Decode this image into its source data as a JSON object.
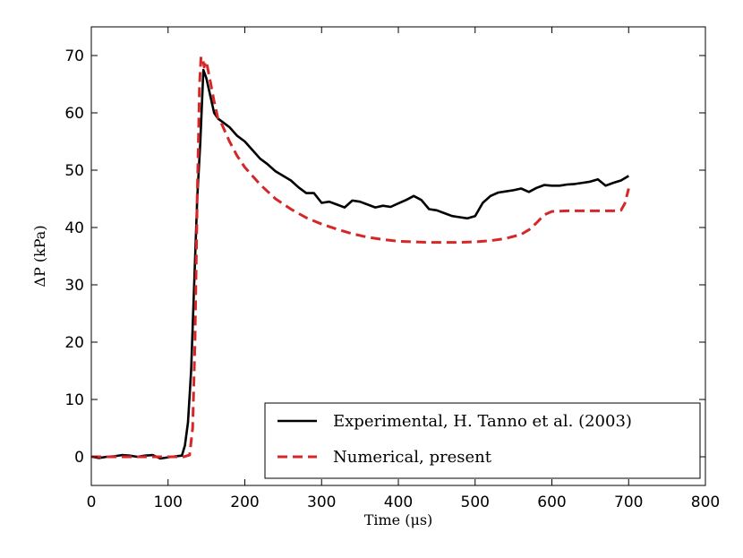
{
  "chart_data": {
    "type": "line",
    "title": "",
    "xlabel": "Time (μs)",
    "ylabel": "ΔP (kPa)",
    "xlim": [
      0,
      800
    ],
    "ylim": [
      -5,
      75
    ],
    "xticks": [
      0,
      100,
      200,
      300,
      400,
      500,
      600,
      700,
      800
    ],
    "yticks": [
      0,
      10,
      20,
      30,
      40,
      50,
      60,
      70
    ],
    "xtick_labels": [
      "0",
      "100",
      "200",
      "300",
      "400",
      "500",
      "600",
      "700",
      "800"
    ],
    "ytick_labels": [
      "0",
      "10",
      "20",
      "30",
      "40",
      "50",
      "60",
      "70"
    ],
    "grid": false,
    "legend_position": "bottom-right",
    "series": [
      {
        "name": "Experimental,  H. Tanno et al.  (2003)",
        "color": "#000000",
        "style": "solid",
        "x": [
          0,
          10,
          20,
          30,
          40,
          50,
          60,
          70,
          80,
          90,
          100,
          110,
          118,
          122,
          126,
          130,
          134,
          138,
          142,
          146,
          150,
          155,
          160,
          165,
          170,
          180,
          190,
          200,
          210,
          220,
          230,
          240,
          250,
          260,
          270,
          280,
          290,
          300,
          310,
          320,
          330,
          340,
          350,
          360,
          370,
          380,
          390,
          400,
          410,
          420,
          430,
          440,
          450,
          460,
          470,
          480,
          490,
          500,
          510,
          520,
          530,
          540,
          550,
          560,
          570,
          580,
          590,
          600,
          610,
          620,
          630,
          640,
          650,
          660,
          670,
          680,
          690,
          700
        ],
        "y": [
          0,
          -0.2,
          0,
          0.1,
          0.3,
          0.2,
          0,
          0.2,
          0.3,
          -0.3,
          -0.1,
          0.1,
          0.2,
          2,
          6,
          15,
          30,
          45,
          55,
          67.5,
          66,
          63,
          60,
          59,
          58.5,
          57.5,
          56,
          55,
          53.5,
          52,
          51,
          49.8,
          49,
          48.2,
          47,
          46,
          46,
          44.3,
          44.5,
          44,
          43.5,
          44.7,
          44.5,
          44,
          43.5,
          43.8,
          43.6,
          44.2,
          44.8,
          45.5,
          44.8,
          43.2,
          43,
          42.5,
          42,
          41.8,
          41.6,
          42,
          44.3,
          45.5,
          46.1,
          46.3,
          46.5,
          46.8,
          46.2,
          46.9,
          47.4,
          47.3,
          47.3,
          47.5,
          47.6,
          47.8,
          48,
          48.4,
          47.3,
          47.8,
          48.2,
          49
        ]
      },
      {
        "name": "Numerical,  present",
        "color": "#d62728",
        "style": "dashed",
        "x": [
          0,
          20,
          40,
          60,
          80,
          100,
          120,
          128,
          132,
          135,
          138,
          141,
          143,
          145,
          147,
          149,
          151,
          155,
          160,
          165,
          170,
          180,
          190,
          200,
          220,
          240,
          260,
          280,
          300,
          320,
          340,
          360,
          380,
          400,
          420,
          440,
          460,
          480,
          500,
          520,
          540,
          560,
          570,
          580,
          590,
          600,
          620,
          640,
          660,
          680,
          690,
          695,
          700
        ],
        "y": [
          0,
          0,
          0,
          0,
          0,
          0,
          0,
          0.3,
          5,
          20,
          45,
          65,
          69.8,
          69.5,
          68,
          69,
          68.2,
          65.5,
          62,
          59,
          58,
          55,
          52.5,
          50.5,
          47.5,
          45,
          43.2,
          41.7,
          40.6,
          39.7,
          38.9,
          38.3,
          37.9,
          37.6,
          37.5,
          37.4,
          37.4,
          37.4,
          37.5,
          37.7,
          38.1,
          38.8,
          39.6,
          40.8,
          42.2,
          42.8,
          42.9,
          42.9,
          42.9,
          42.9,
          43,
          44.2,
          46.8
        ]
      }
    ]
  }
}
